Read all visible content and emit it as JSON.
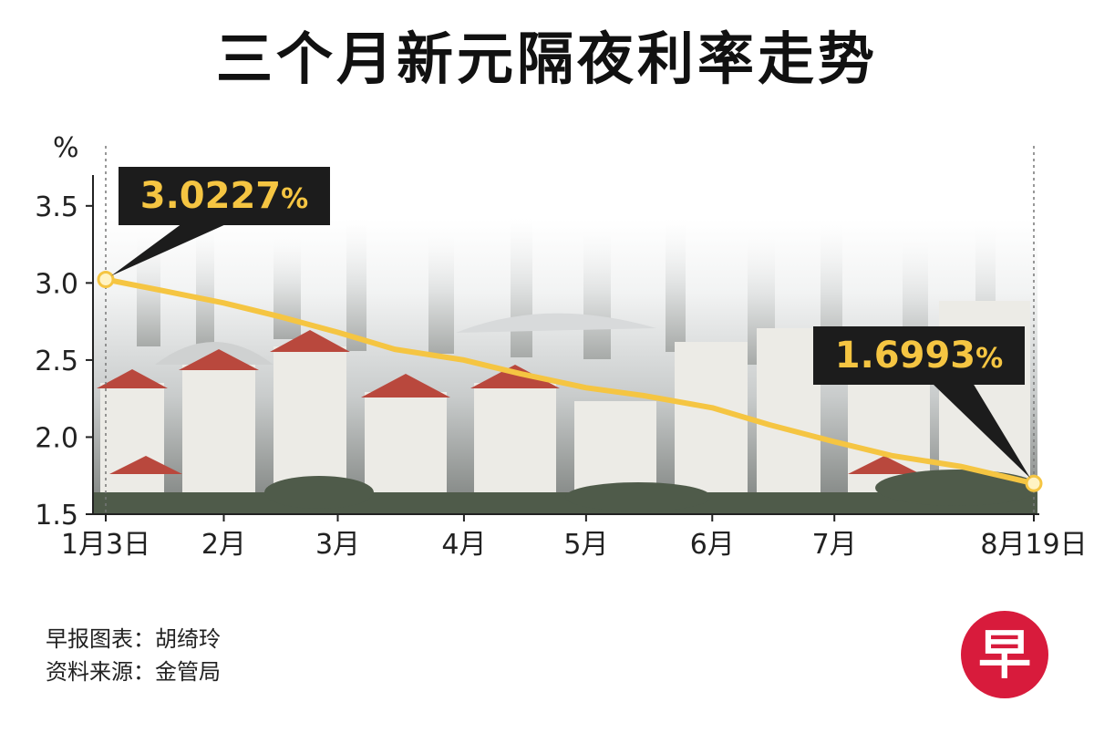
{
  "chart_data": {
    "type": "line",
    "title": "三个月新元隔夜利率走势",
    "ylabel": "%",
    "ylim": [
      1.5,
      3.7
    ],
    "yticks": [
      1.5,
      2.0,
      2.5,
      3.0,
      3.5
    ],
    "ytick_labels": [
      "1.5",
      "2.0",
      "2.5",
      "3.0",
      "3.5"
    ],
    "x_range": [
      "1月3日",
      "8月19日"
    ],
    "xtick_labels": [
      {
        "label": "1月3日",
        "pos": "01-03"
      },
      {
        "label": "2月",
        "pos": "02-01"
      },
      {
        "label": "3月",
        "pos": "03-01"
      },
      {
        "label": "4月",
        "pos": "04-01"
      },
      {
        "label": "5月",
        "pos": "05-01"
      },
      {
        "label": "6月",
        "pos": "06-01"
      },
      {
        "label": "7月",
        "pos": "07-01"
      },
      {
        "label": "8月19日",
        "pos": "08-19"
      }
    ],
    "series": [
      {
        "color": "#f5c542",
        "x": [
          "01-03",
          "01-17",
          "02-01",
          "02-15",
          "03-01",
          "03-15",
          "04-01",
          "04-15",
          "05-01",
          "05-15",
          "06-01",
          "06-15",
          "07-01",
          "07-15",
          "08-01",
          "08-19"
        ],
        "values": [
          3.0227,
          2.95,
          2.87,
          2.78,
          2.68,
          2.57,
          2.5,
          2.41,
          2.32,
          2.27,
          2.19,
          2.08,
          1.97,
          1.88,
          1.81,
          1.6993
        ]
      }
    ],
    "annotations": [
      {
        "x": "01-03",
        "y": 3.0227,
        "text": "3.0227",
        "unit": "%"
      },
      {
        "x": "08-19",
        "y": 1.6993,
        "text": "1.6993",
        "unit": "%"
      }
    ],
    "grid": false,
    "legend": "none"
  },
  "credits": {
    "line1": "早报图表：胡绮玲",
    "line2": "资料来源：金管局"
  },
  "logo": {
    "char": "早",
    "color": "#d81b3c"
  },
  "colors": {
    "line": "#f5c542",
    "label_bg": "#1c1c1c",
    "label_text": "#f5c542",
    "city_haze": "#e4e6e6"
  }
}
